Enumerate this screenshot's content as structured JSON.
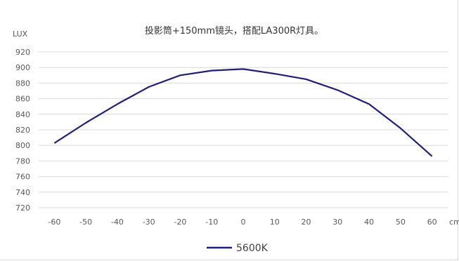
{
  "chart_data": {
    "type": "line",
    "title": "投影筒+150mm镜头，搭配LA300R灯具。",
    "ylabel": "LUX",
    "xlabel": "cm",
    "x": [
      -60,
      -50,
      -40,
      -30,
      -20,
      -10,
      0,
      10,
      20,
      30,
      40,
      50,
      60
    ],
    "ylim": [
      720,
      920
    ],
    "yticks": [
      720,
      740,
      760,
      780,
      800,
      820,
      840,
      860,
      880,
      900,
      920
    ],
    "grid": true,
    "legend_position": "bottom",
    "series": [
      {
        "name": "5600K",
        "color": "#1f1f7a",
        "values": [
          803,
          829,
          853,
          875,
          890,
          896,
          898,
          892,
          885,
          871,
          853,
          822,
          786
        ]
      }
    ]
  },
  "colors": {
    "gridline": "#d9d9d9",
    "axis_text": "#595959"
  }
}
